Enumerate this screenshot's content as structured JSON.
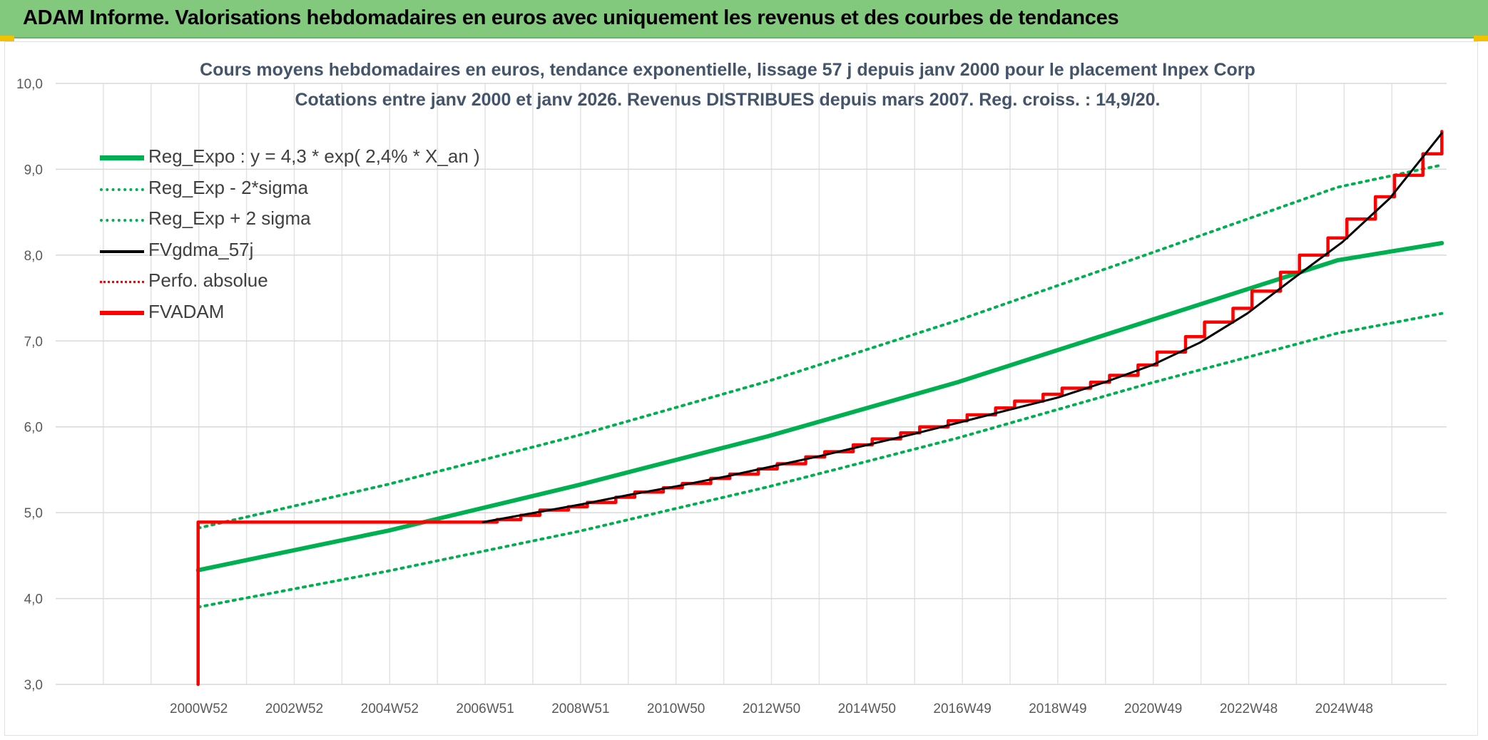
{
  "banner": {
    "title": "ADAM Informe. Valorisations hebdomadaires en euros avec uniquement les revenus et des courbes de tendances"
  },
  "colors": {
    "banner_bg": "#82c97e",
    "reg_expo": "#00b050",
    "fvgdma": "#000000",
    "perfo": "#ff0000",
    "fvadam": "#ff0000",
    "title_text": "#44546a"
  },
  "chart_data": {
    "type": "line",
    "title_line1": "Cours moyens hebdomadaires en euros, tendance exponentielle, lissage 57 j depuis janv 2000 pour le placement Inpex Corp",
    "title_line2": "Cotations entre janv 2000 et janv 2026. Revenus DISTRIBUES depuis mars 2007. Reg. croiss. : 14,9/20.",
    "ylim": [
      3.0,
      10.0
    ],
    "y_ticks": [
      "3,0",
      "4,0",
      "5,0",
      "6,0",
      "7,0",
      "8,0",
      "9,0",
      "10,0"
    ],
    "x_ticks": [
      "2000W52",
      "2002W52",
      "2004W52",
      "2006W51",
      "2008W51",
      "2010W50",
      "2012W50",
      "2014W50",
      "2016W49",
      "2018W49",
      "2020W49",
      "2022W48",
      "2024W48"
    ],
    "xlim": [
      1997.0,
      2026.3
    ],
    "grid": true,
    "legend_position": "top-left",
    "series": [
      {
        "name": "Reg_Expo : y = 4,3 * exp( 2,4% *  X_an )",
        "style": "solid-green",
        "x": [
          2000.0,
          2004.0,
          2008.0,
          2012.0,
          2016.0,
          2020.0,
          2024.0,
          2026.2
        ],
        "values": [
          4.33,
          4.79,
          5.32,
          5.89,
          6.52,
          7.23,
          7.94,
          8.14
        ]
      },
      {
        "name": "Reg_Exp - 2*sigma",
        "style": "dot-green",
        "x": [
          2000.0,
          2004.0,
          2008.0,
          2012.0,
          2016.0,
          2020.0,
          2024.0,
          2026.2
        ],
        "values": [
          3.9,
          4.32,
          4.78,
          5.3,
          5.87,
          6.5,
          7.09,
          7.32
        ]
      },
      {
        "name": "Reg_Exp + 2 sigma",
        "style": "dot-green",
        "x": [
          2000.0,
          2004.0,
          2008.0,
          2012.0,
          2016.0,
          2020.0,
          2024.0,
          2026.2
        ],
        "values": [
          4.82,
          5.33,
          5.9,
          6.53,
          7.24,
          8.01,
          8.79,
          9.05
        ]
      },
      {
        "name": "FVgdma_57j",
        "style": "solid-black",
        "x": [
          2006.0,
          2007.1,
          2008.1,
          2009.1,
          2010.1,
          2011.1,
          2012.1,
          2013.1,
          2014.1,
          2015.1,
          2016.1,
          2017.1,
          2018.1,
          2019.1,
          2020.1,
          2021.1,
          2022.1,
          2023.1,
          2024.1,
          2025.1,
          2026.2
        ],
        "values": [
          4.89,
          5.0,
          5.1,
          5.21,
          5.31,
          5.42,
          5.54,
          5.66,
          5.79,
          5.92,
          6.06,
          6.2,
          6.34,
          6.52,
          6.72,
          6.98,
          7.32,
          7.74,
          8.15,
          8.66,
          9.42
        ]
      },
      {
        "name": "Perfo. absolue",
        "style": "dot-red",
        "x": [],
        "values": []
      },
      {
        "name": "FVADAM",
        "style": "solid-red",
        "x": [
          2000.0,
          2000.0,
          2006.0,
          2006.3,
          2006.8,
          2007.2,
          2007.8,
          2008.2,
          2008.8,
          2009.2,
          2009.8,
          2010.2,
          2010.8,
          2011.2,
          2011.8,
          2012.2,
          2012.8,
          2013.2,
          2013.8,
          2014.2,
          2014.8,
          2015.2,
          2015.8,
          2016.2,
          2016.8,
          2017.2,
          2017.8,
          2018.2,
          2018.8,
          2019.2,
          2019.8,
          2020.2,
          2020.8,
          2021.2,
          2021.8,
          2022.2,
          2022.8,
          2023.2,
          2023.8,
          2024.2,
          2024.8,
          2025.2,
          2025.8,
          2026.2
        ],
        "values": [
          3.0,
          4.89,
          4.89,
          4.92,
          4.97,
          5.03,
          5.07,
          5.12,
          5.18,
          5.24,
          5.29,
          5.34,
          5.4,
          5.45,
          5.51,
          5.57,
          5.65,
          5.71,
          5.79,
          5.86,
          5.93,
          6.0,
          6.07,
          6.14,
          6.22,
          6.3,
          6.38,
          6.45,
          6.52,
          6.6,
          6.72,
          6.87,
          7.05,
          7.22,
          7.38,
          7.58,
          7.8,
          8.0,
          8.2,
          8.42,
          8.68,
          8.93,
          9.18,
          9.44
        ]
      }
    ]
  }
}
